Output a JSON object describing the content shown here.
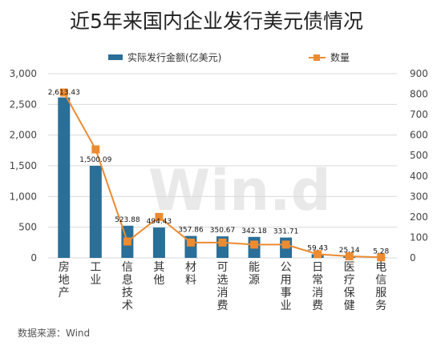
{
  "colors": {
    "bar": "#2a6f97",
    "line": "#ed8b31",
    "grid": "#d9d9d9",
    "watermark": "#e6e6e6"
  },
  "watermark": "Win.d",
  "source": "数据来源：Wind",
  "chart_data": {
    "type": "bar",
    "title": "近5年来国内企业发行美元债情况",
    "legend_position": "top",
    "grid": true,
    "categories": [
      "房地产",
      "工业",
      "信息技术",
      "其他",
      "材料",
      "可选消费",
      "能源",
      "公用事业",
      "日常消费",
      "医疗保健",
      "电信服务"
    ],
    "series": [
      {
        "name": "实际发行金额(亿美元)",
        "type": "bar",
        "axis": "left",
        "values": [
          2613.43,
          1500.09,
          523.88,
          494.43,
          357.86,
          350.67,
          342.18,
          331.71,
          59.43,
          25.14,
          5.28
        ],
        "labels": [
          "2,613.43",
          "1,500.09",
          "523.88",
          "494.43",
          "357.86",
          "350.67",
          "342.18",
          "331.71",
          "59.43",
          "25.14",
          "5.28"
        ]
      },
      {
        "name": "数量",
        "type": "line",
        "axis": "right",
        "values": [
          808,
          530,
          80,
          200,
          75,
          75,
          65,
          65,
          18,
          8,
          3
        ]
      }
    ],
    "y_left": {
      "min": 0,
      "max": 3000,
      "ticks": [
        0,
        500,
        1000,
        1500,
        2000,
        2500,
        3000
      ],
      "tick_labels": [
        "0",
        "500",
        "1,000",
        "1,500",
        "2,000",
        "2,500",
        "3,000"
      ]
    },
    "y_right": {
      "min": 0,
      "max": 900,
      "ticks": [
        0,
        100,
        200,
        300,
        400,
        500,
        600,
        700,
        800,
        900
      ],
      "tick_labels": [
        "0",
        "100",
        "200",
        "300",
        "400",
        "500",
        "600",
        "700",
        "800",
        "900"
      ]
    }
  }
}
